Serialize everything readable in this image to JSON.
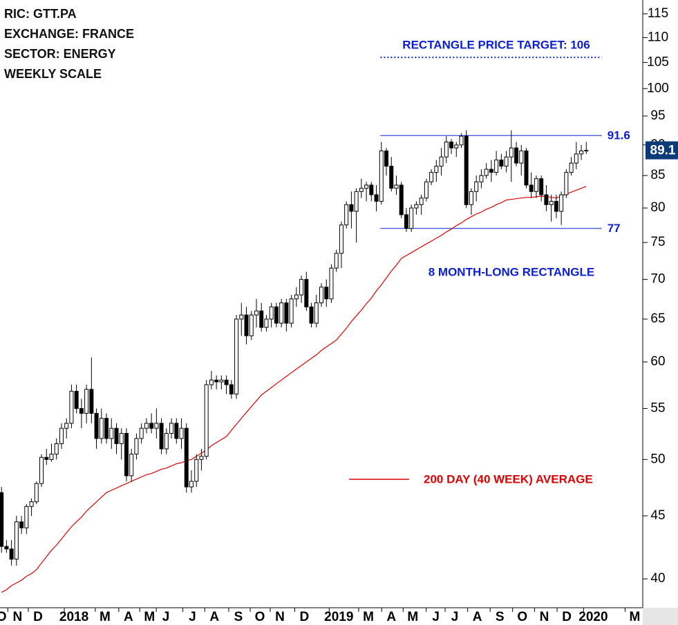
{
  "chart_data": {
    "type": "candlestick",
    "title_lines": [
      "RIC: GTT.PA",
      "EXCHANGE: FRANCE",
      "SECTOR: ENERGY",
      "WEEKLY SCALE"
    ],
    "x": [
      0,
      1,
      2,
      3,
      4,
      5,
      6,
      7,
      8,
      9,
      10,
      11,
      12,
      13,
      14,
      15,
      16,
      17,
      18,
      19,
      20,
      21,
      22,
      23,
      24,
      25,
      26,
      27,
      28,
      29,
      30,
      31,
      32,
      33,
      34,
      35,
      36,
      37,
      38,
      39,
      40,
      41,
      42,
      43,
      44,
      45,
      46,
      47,
      48,
      49,
      50,
      51,
      52,
      53,
      54,
      55,
      56,
      57,
      58,
      59,
      60,
      61,
      62,
      63,
      64,
      65,
      66,
      67,
      68,
      69,
      70,
      71,
      72,
      73,
      74,
      75,
      76,
      77,
      78,
      79,
      80,
      81,
      82,
      83,
      84,
      85,
      86,
      87,
      88,
      89,
      90,
      91,
      92,
      93,
      94,
      95,
      96,
      97,
      98,
      99,
      100,
      101,
      102,
      103,
      104,
      105,
      106,
      107,
      108,
      109,
      110,
      111,
      112,
      113,
      114,
      115,
      116,
      117
    ],
    "open": [
      47,
      42.5,
      42.3,
      41.5,
      44.5,
      44,
      45.8,
      46.2,
      47.8,
      50.2,
      50,
      50.5,
      51.5,
      53,
      53.5,
      56.8,
      55,
      54.5,
      57,
      54.5,
      52,
      54,
      52,
      53,
      51.5,
      52.5,
      48.5,
      50.5,
      52,
      53,
      53.5,
      53,
      53.5,
      51,
      52.5,
      53.5,
      52,
      53,
      47.5,
      48,
      50,
      50.3,
      57.5,
      58,
      57.8,
      58,
      57.5,
      56.5,
      65,
      65.5,
      63,
      65.5,
      66,
      64,
      65,
      66.5,
      64.5,
      67,
      64.5,
      67.5,
      68,
      70,
      66.5,
      64.5,
      67,
      69,
      67.5,
      71.5,
      73.5,
      77.5,
      80.5,
      79.5,
      82.5,
      83,
      83.5,
      82,
      81,
      89,
      86.5,
      83,
      83.5,
      79,
      77,
      80,
      80.5,
      81.5,
      84,
      85.5,
      86.5,
      88,
      90.5,
      89.5,
      90,
      91.5,
      80.5,
      82.5,
      84,
      85,
      86,
      85.5,
      87.5,
      86.5,
      88,
      89.5,
      87,
      89,
      83.5,
      82.5,
      84.5,
      82,
      80.5,
      81,
      79.5,
      82,
      85.5,
      87,
      88.5,
      89
    ],
    "high": [
      47.5,
      43,
      43,
      45,
      45,
      46,
      46.5,
      48,
      50.5,
      51,
      51.5,
      52,
      53.5,
      54,
      57.5,
      57.5,
      56,
      57.5,
      60.5,
      55,
      55,
      54.5,
      54,
      53.5,
      53,
      53,
      51,
      52.5,
      53.5,
      54,
      54.5,
      55,
      54,
      53,
      54,
      54,
      54,
      53.5,
      49,
      50.5,
      51,
      58,
      59,
      58.5,
      58.5,
      58.5,
      58,
      65.5,
      67,
      66.5,
      66,
      67.5,
      67,
      65.5,
      67,
      67,
      67.5,
      67.5,
      68,
      69,
      70.5,
      71,
      67,
      68,
      69.5,
      70,
      72,
      74,
      78,
      81,
      82.5,
      83,
      84.5,
      84,
      84,
      83.5,
      90.5,
      89.5,
      88,
      85,
      84,
      80,
      80.5,
      81,
      82,
      84.5,
      86,
      87.5,
      89.5,
      91.5,
      91,
      90.5,
      92,
      92.5,
      83,
      85,
      86,
      87,
      87.5,
      89,
      88.5,
      89,
      92.5,
      90.5,
      90,
      89.5,
      85.5,
      85,
      85,
      83.5,
      82,
      82,
      82.5,
      86,
      88,
      90.5,
      90,
      90.5
    ],
    "low": [
      42,
      42,
      41,
      41,
      43.5,
      43.5,
      45,
      46,
      47.5,
      49.5,
      49.8,
      50,
      51,
      52,
      53,
      54.5,
      53,
      53.5,
      53.5,
      51,
      51.5,
      51.5,
      51,
      50.5,
      50,
      48,
      48,
      50,
      51.5,
      52.5,
      52.5,
      52,
      50.5,
      50.5,
      52,
      51.5,
      51,
      47,
      47,
      47.5,
      49,
      50,
      57,
      57,
      57,
      56.5,
      56,
      56,
      63,
      62,
      62.5,
      64,
      63.5,
      63.5,
      64,
      64,
      64,
      63.5,
      64,
      66.5,
      67,
      66,
      64,
      64,
      66.5,
      66.5,
      67,
      71,
      71.5,
      77,
      77,
      75,
      81.5,
      81,
      81,
      79.5,
      80.5,
      85,
      82.5,
      82,
      78.5,
      76.5,
      76.5,
      79,
      79,
      81,
      83.5,
      84,
      85,
      87,
      88.5,
      88,
      89.5,
      80,
      79,
      81,
      83,
      84.5,
      84,
      85,
      86,
      85.5,
      84,
      86.5,
      85,
      83,
      81.5,
      81.5,
      81,
      79.5,
      78,
      78.5,
      77.5,
      81.5,
      85,
      86,
      87.5,
      88.5
    ],
    "close": [
      42.5,
      42.3,
      41.5,
      44.5,
      44,
      45.8,
      46.2,
      47.8,
      50.2,
      50,
      50.5,
      51.5,
      53,
      53.5,
      56.8,
      55,
      54.5,
      57,
      54.5,
      52,
      54,
      52,
      53,
      51.5,
      52.5,
      48.5,
      50.5,
      52,
      53,
      53.5,
      53,
      53.5,
      51,
      52.5,
      53.5,
      52,
      53,
      47.5,
      48,
      50,
      50.3,
      57.5,
      58,
      57.8,
      58,
      57.5,
      56.5,
      65,
      65.5,
      63,
      65.5,
      66,
      64,
      65,
      66.5,
      64.5,
      67,
      64.5,
      67.5,
      68,
      70,
      66.5,
      64.5,
      67,
      69,
      67.5,
      71.5,
      73.5,
      77.5,
      80.5,
      79.5,
      82.5,
      83,
      83.5,
      82,
      81,
      89,
      86.5,
      83,
      83.5,
      79,
      77,
      80,
      80.5,
      81.5,
      84,
      85.5,
      86.5,
      88,
      90.5,
      89.5,
      90,
      91.5,
      80.5,
      82.5,
      84,
      85,
      86,
      85.5,
      87.5,
      86.5,
      88,
      89.5,
      87,
      89,
      83.5,
      82.5,
      84.5,
      82,
      80.5,
      81,
      79.5,
      82,
      85.5,
      87,
      88.5,
      89,
      89.1
    ],
    "moving_average": {
      "name": "200 DAY (40 WEEK) AVERAGE",
      "color": "#e00000",
      "values": [
        39.0,
        39.2,
        39.5,
        39.7,
        39.9,
        40.2,
        40.4,
        40.7,
        41.2,
        41.7,
        42.2,
        42.6,
        43.1,
        43.6,
        44.1,
        44.5,
        44.9,
        45.4,
        45.8,
        46.2,
        46.6,
        47.0,
        47.2,
        47.4,
        47.6,
        47.8,
        48.0,
        48.2,
        48.4,
        48.6,
        48.7,
        48.9,
        49.1,
        49.2,
        49.4,
        49.6,
        49.7,
        49.9,
        50.0,
        50.3,
        50.6,
        50.9,
        51.3,
        51.6,
        51.9,
        52.2,
        52.8,
        53.4,
        54.0,
        54.6,
        55.2,
        55.8,
        56.4,
        56.8,
        57.2,
        57.6,
        58.0,
        58.4,
        58.8,
        59.2,
        59.6,
        60.0,
        60.4,
        60.8,
        61.3,
        61.7,
        62.1,
        62.5,
        63.2,
        63.9,
        64.7,
        65.4,
        66.1,
        66.9,
        67.6,
        68.5,
        69.3,
        70.2,
        71.1,
        71.9,
        72.8,
        73.2,
        73.6,
        74.0,
        74.4,
        74.8,
        75.2,
        75.6,
        76.0,
        76.5,
        76.9,
        77.4,
        77.8,
        78.3,
        78.7,
        79.1,
        79.4,
        79.8,
        80.1,
        80.5,
        80.8,
        81.2,
        81.3,
        81.4,
        81.5,
        81.6,
        81.6,
        81.7,
        81.8,
        81.7,
        81.6,
        81.5,
        81.8,
        82.1,
        82.4,
        82.7,
        83.0,
        83.3
      ]
    },
    "resistance": 91.6,
    "support": 77,
    "target": 106,
    "target_label": "RECTANGLE PRICE TARGET: 106",
    "pattern_label": "8 MONTH-LONG RECTANGLE",
    "xlim": [
      -0.3,
      128.3
    ],
    "xticks": [
      {
        "value": 0,
        "label": "O"
      },
      {
        "value": 3.2,
        "label": "N"
      },
      {
        "value": 7.3,
        "label": "D"
      },
      {
        "value": 14.5,
        "label": "2018"
      },
      {
        "value": 20.7,
        "label": "M"
      },
      {
        "value": 25.4,
        "label": "A"
      },
      {
        "value": 29.6,
        "label": "M"
      },
      {
        "value": 32.9,
        "label": "J"
      },
      {
        "value": 38.2,
        "label": "J"
      },
      {
        "value": 42.6,
        "label": "A"
      },
      {
        "value": 47.4,
        "label": "S"
      },
      {
        "value": 51.7,
        "label": "O"
      },
      {
        "value": 55.7,
        "label": "N"
      },
      {
        "value": 60.6,
        "label": "D"
      },
      {
        "value": 67.5,
        "label": "2019"
      },
      {
        "value": 73.4,
        "label": "M"
      },
      {
        "value": 78,
        "label": "A"
      },
      {
        "value": 82.3,
        "label": "M"
      },
      {
        "value": 86.9,
        "label": "J"
      },
      {
        "value": 90.7,
        "label": "J"
      },
      {
        "value": 95.2,
        "label": "A"
      },
      {
        "value": 99.7,
        "label": "S"
      },
      {
        "value": 104.2,
        "label": "O"
      },
      {
        "value": 108.6,
        "label": "N"
      },
      {
        "value": 113.1,
        "label": "D"
      },
      {
        "value": 118.4,
        "label": "2020"
      },
      {
        "value": 126.7,
        "label": "M"
      }
    ],
    "ylim": [
      37.9,
      118
    ],
    "yticks": [
      40,
      45,
      50,
      55,
      60,
      65,
      70,
      75,
      80,
      85,
      90,
      95,
      100,
      105,
      110,
      115
    ],
    "log_scale": true
  }
}
